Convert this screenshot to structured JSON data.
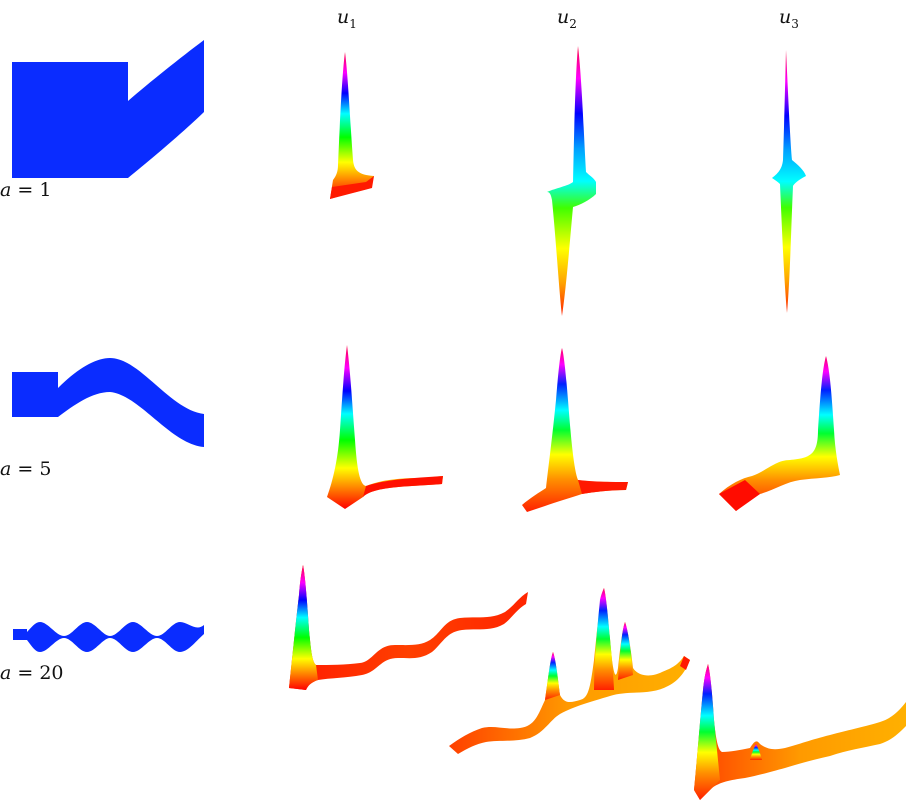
{
  "columns": [
    {
      "symbol": "u",
      "index": "1"
    },
    {
      "symbol": "u",
      "index": "2"
    },
    {
      "symbol": "u",
      "index": "3"
    }
  ],
  "rows": [
    {
      "variable": "a",
      "equals": "=",
      "value": "1"
    },
    {
      "variable": "a",
      "equals": "=",
      "value": "5"
    },
    {
      "variable": "a",
      "equals": "=",
      "value": "20"
    }
  ],
  "colors": {
    "domain_fill": "#0a2cff",
    "colormap": [
      "#ff0000",
      "#ff8000",
      "#ffff00",
      "#00ff00",
      "#00ffff",
      "#0000ff",
      "#ff00ff"
    ]
  }
}
